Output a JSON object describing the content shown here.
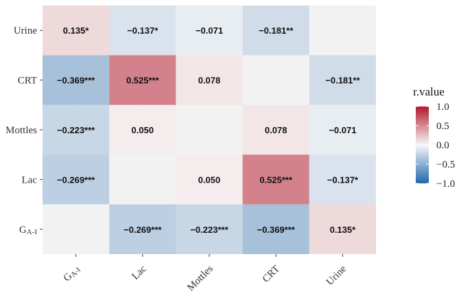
{
  "chart_data": {
    "type": "heatmap",
    "title": "",
    "xlabel": "",
    "ylabel": "",
    "x_categories": [
      "GA-I",
      "Lac",
      "Mottles",
      "CRT",
      "Urine"
    ],
    "y_categories": [
      "GA-I",
      "Lac",
      "Mottles",
      "CRT",
      "Urine"
    ],
    "cells": [
      {
        "x": "GA-I",
        "y": "Urine",
        "value": 0.135,
        "label": "0.135*"
      },
      {
        "x": "Lac",
        "y": "Urine",
        "value": -0.137,
        "label": "−0.137*"
      },
      {
        "x": "Mottles",
        "y": "Urine",
        "value": -0.071,
        "label": "−0.071"
      },
      {
        "x": "CRT",
        "y": "Urine",
        "value": -0.181,
        "label": "−0.181**"
      },
      {
        "x": "Urine",
        "y": "Urine",
        "value": null,
        "label": ""
      },
      {
        "x": "GA-I",
        "y": "CRT",
        "value": -0.369,
        "label": "−0.369***"
      },
      {
        "x": "Lac",
        "y": "CRT",
        "value": 0.525,
        "label": "0.525***"
      },
      {
        "x": "Mottles",
        "y": "CRT",
        "value": 0.078,
        "label": "0.078"
      },
      {
        "x": "CRT",
        "y": "CRT",
        "value": null,
        "label": ""
      },
      {
        "x": "Urine",
        "y": "CRT",
        "value": -0.181,
        "label": "−0.181**"
      },
      {
        "x": "GA-I",
        "y": "Mottles",
        "value": -0.223,
        "label": "−0.223***"
      },
      {
        "x": "Lac",
        "y": "Mottles",
        "value": 0.05,
        "label": "0.050"
      },
      {
        "x": "Mottles",
        "y": "Mottles",
        "value": null,
        "label": ""
      },
      {
        "x": "CRT",
        "y": "Mottles",
        "value": 0.078,
        "label": "0.078"
      },
      {
        "x": "Urine",
        "y": "Mottles",
        "value": -0.071,
        "label": "−0.071"
      },
      {
        "x": "GA-I",
        "y": "Lac",
        "value": -0.269,
        "label": "−0.269***"
      },
      {
        "x": "Lac",
        "y": "Lac",
        "value": null,
        "label": ""
      },
      {
        "x": "Mottles",
        "y": "Lac",
        "value": 0.05,
        "label": "0.050"
      },
      {
        "x": "CRT",
        "y": "Lac",
        "value": 0.525,
        "label": "0.525***"
      },
      {
        "x": "Urine",
        "y": "Lac",
        "value": -0.137,
        "label": "−0.137*"
      },
      {
        "x": "GA-I",
        "y": "GA-I",
        "value": null,
        "label": ""
      },
      {
        "x": "Lac",
        "y": "GA-I",
        "value": -0.269,
        "label": "−0.269***"
      },
      {
        "x": "Mottles",
        "y": "GA-I",
        "value": -0.223,
        "label": "−0.223***"
      },
      {
        "x": "CRT",
        "y": "GA-I",
        "value": -0.369,
        "label": "−0.369***"
      },
      {
        "x": "Urine",
        "y": "GA-I",
        "value": 0.135,
        "label": "0.135*"
      }
    ],
    "legend": {
      "title": "r.value",
      "position": "right",
      "range": [
        -1.0,
        1.0
      ],
      "ticks": [
        1.0,
        0.5,
        0.0,
        -0.5,
        -1.0
      ],
      "tick_labels": [
        "1.0",
        "0.5",
        "0.0",
        "−0.5",
        "−1.0"
      ]
    },
    "colors": {
      "negative": "#2166ac",
      "neutral": "#f7f7f7",
      "positive": "#b2182b",
      "diagonal": "#f2f2f2"
    },
    "grid": true
  }
}
